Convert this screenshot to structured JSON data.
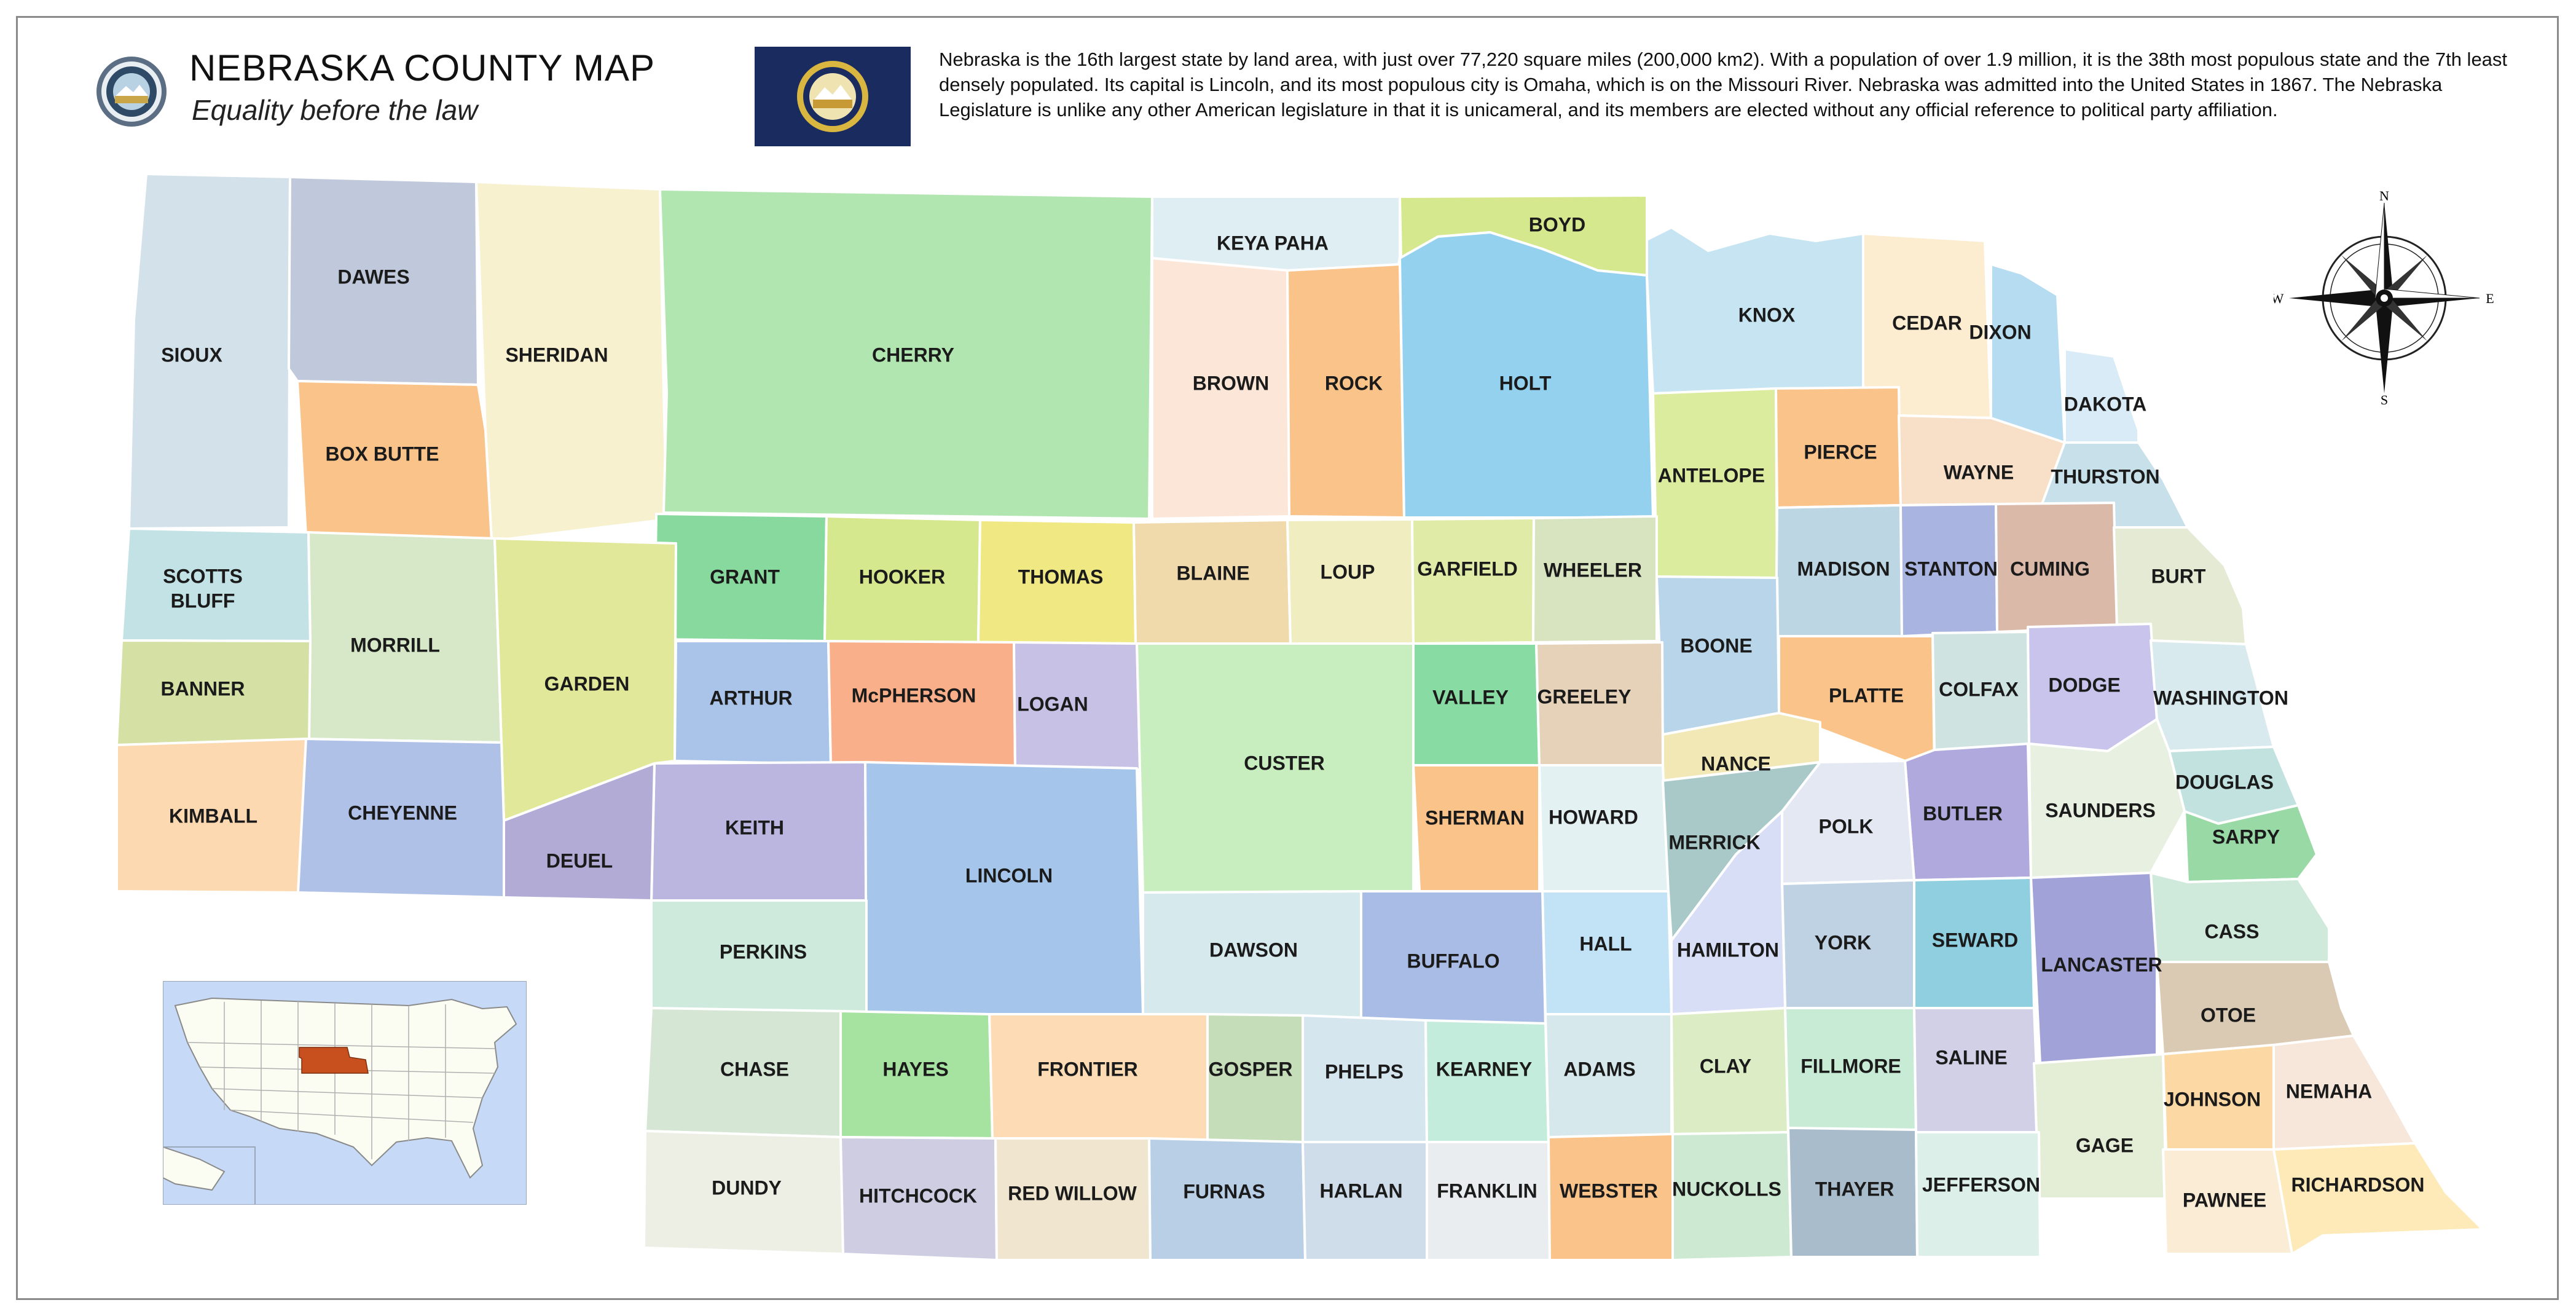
{
  "header": {
    "title": "NEBRASKA COUNTY MAP",
    "subtitle": "Equality before the law",
    "description": "Nebraska is the 16th largest state by land area, with just over 77,220 square miles (200,000 km2). With a population of over 1.9 million, it is the 38th most populous state and the 7th least densely populated. Its capital is Lincoln, and its most populous city is Omaha, which is on the Missouri River. Nebraska was admitted into the United States in 1867. The Nebraska Legislature is unlike any other American legislature in that it is unicameral, and its members are elected without any official reference to political party affiliation."
  },
  "icons": {
    "seal": "state-seal-icon",
    "flag": "state-flag-icon",
    "compass": "compass-rose-icon",
    "inset": "usa-locator-map"
  },
  "compass": {
    "n": "N",
    "s": "S",
    "e": "E",
    "w": "W"
  },
  "colors": {
    "highlight_state": "#c8501e",
    "border": "#ffffff",
    "background": "#ffffff"
  },
  "counties": [
    {
      "name": "SIOUX",
      "color": "#d3e1ea"
    },
    {
      "name": "DAWES",
      "color": "#bfc9db"
    },
    {
      "name": "SHERIDAN",
      "color": "#f7f1cf"
    },
    {
      "name": "CHERRY",
      "color": "#b2e6b1"
    },
    {
      "name": "KEYA PAHA",
      "color": "#dfeef3"
    },
    {
      "name": "BOYD",
      "color": "#d5e88e"
    },
    {
      "name": "BOX BUTTE",
      "color": "#f9c389"
    },
    {
      "name": "BROWN",
      "color": "#fbe6d8"
    },
    {
      "name": "ROCK",
      "color": "#f9c389"
    },
    {
      "name": "HOLT",
      "color": "#93d1ef"
    },
    {
      "name": "KNOX",
      "color": "#c6e4f1"
    },
    {
      "name": "CEDAR",
      "color": "#fcedd1"
    },
    {
      "name": "DIXON",
      "color": "#b6dcf1"
    },
    {
      "name": "DAKOTA",
      "color": "#d9ebf6"
    },
    {
      "name": "SCOTTS",
      "color": "#c2e2e6"
    },
    {
      "name": "BLUFF",
      "color": "#c2e2e6"
    },
    {
      "name": "ANTELOPE",
      "color": "#dbec9f"
    },
    {
      "name": "PIERCE",
      "color": "#f9c389"
    },
    {
      "name": "WAYNE",
      "color": "#f8e0c8"
    },
    {
      "name": "THURSTON",
      "color": "#c7e0ea"
    },
    {
      "name": "GRANT",
      "color": "#87d99e"
    },
    {
      "name": "HOOKER",
      "color": "#d5e88e"
    },
    {
      "name": "THOMAS",
      "color": "#f0e882"
    },
    {
      "name": "BLAINE",
      "color": "#f0d9ab"
    },
    {
      "name": "LOUP",
      "color": "#f0eec0"
    },
    {
      "name": "GARFIELD",
      "color": "#dfeba6"
    },
    {
      "name": "WHEELER",
      "color": "#d8e4c0"
    },
    {
      "name": "MORRILL",
      "color": "#d6e8c8"
    },
    {
      "name": "GARDEN",
      "color": "#e1e89a"
    },
    {
      "name": "MADISON",
      "color": "#bcd6e4"
    },
    {
      "name": "STANTON",
      "color": "#aab4e0"
    },
    {
      "name": "CUMING",
      "color": "#dbb9a9"
    },
    {
      "name": "BURT",
      "color": "#e4ead4"
    },
    {
      "name": "BANNER",
      "color": "#d5e0a4"
    },
    {
      "name": "ARTHUR",
      "color": "#a9c4e8"
    },
    {
      "name": "McPHERSON",
      "color": "#f9b08a"
    },
    {
      "name": "LOGAN",
      "color": "#c7c1e6"
    },
    {
      "name": "BOONE",
      "color": "#b9d5ea"
    },
    {
      "name": "VALLEY",
      "color": "#89dba4"
    },
    {
      "name": "GREELEY",
      "color": "#e5d2b8"
    },
    {
      "name": "PLATTE",
      "color": "#f9c389"
    },
    {
      "name": "COLFAX",
      "color": "#cfe4e1"
    },
    {
      "name": "DODGE",
      "color": "#c8c4ec"
    },
    {
      "name": "WASHINGTON",
      "color": "#d9eaef"
    },
    {
      "name": "CUSTER",
      "color": "#c8eebf"
    },
    {
      "name": "NANCE",
      "color": "#f2e8b6"
    },
    {
      "name": "KIMBALL",
      "color": "#fdd9b1"
    },
    {
      "name": "CHEYENNE",
      "color": "#b0c1e8"
    },
    {
      "name": "DOUGLAS",
      "color": "#c2e2e0"
    },
    {
      "name": "KEITH",
      "color": "#bab6e0"
    },
    {
      "name": "SHERMAN",
      "color": "#f9c389"
    },
    {
      "name": "HOWARD",
      "color": "#e4f1f3"
    },
    {
      "name": "SAUNDERS",
      "color": "#e8f1e1"
    },
    {
      "name": "BUTLER",
      "color": "#b0a9de"
    },
    {
      "name": "POLK",
      "color": "#e4e8f3"
    },
    {
      "name": "MERRICK",
      "color": "#a9c9c9"
    },
    {
      "name": "SARPY",
      "color": "#98d9a6"
    },
    {
      "name": "DEUEL",
      "color": "#b2abd6"
    },
    {
      "name": "LINCOLN",
      "color": "#a5c6ea"
    },
    {
      "name": "CASS",
      "color": "#cfeadb"
    },
    {
      "name": "LANCASTER",
      "color": "#a1a3d8"
    },
    {
      "name": "PERKINS",
      "color": "#cdeadd"
    },
    {
      "name": "DAWSON",
      "color": "#d6e9ed"
    },
    {
      "name": "HALL",
      "color": "#c2e2f6"
    },
    {
      "name": "YORK",
      "color": "#bfd2e3"
    },
    {
      "name": "SEWARD",
      "color": "#8fcfe0"
    },
    {
      "name": "HAMILTON",
      "color": "#d8def6"
    },
    {
      "name": "BUFFALO",
      "color": "#a9bce6"
    },
    {
      "name": "OTOE",
      "color": "#dacab3"
    },
    {
      "name": "CHASE",
      "color": "#d6e6d4"
    },
    {
      "name": "HAYES",
      "color": "#a6e3a1"
    },
    {
      "name": "FRONTIER",
      "color": "#fddcb5"
    },
    {
      "name": "GOSPER",
      "color": "#c5ddb9"
    },
    {
      "name": "PHELPS",
      "color": "#d6e6ef"
    },
    {
      "name": "KEARNEY",
      "color": "#c4ecdd"
    },
    {
      "name": "ADAMS",
      "color": "#d7e8ec"
    },
    {
      "name": "CLAY",
      "color": "#dcedc5"
    },
    {
      "name": "FILLMORE",
      "color": "#c8ebd5"
    },
    {
      "name": "SALINE",
      "color": "#d2d0e6"
    },
    {
      "name": "GAGE",
      "color": "#e4edd6"
    },
    {
      "name": "JOHNSON",
      "color": "#fcd9a4"
    },
    {
      "name": "NEMAHA",
      "color": "#f7e6da"
    },
    {
      "name": "DUNDY",
      "color": "#edeee4"
    },
    {
      "name": "HITCHCOCK",
      "color": "#cecde2"
    },
    {
      "name": "RED WILLOW",
      "color": "#f0e6cf"
    },
    {
      "name": "FURNAS",
      "color": "#b8cfe6"
    },
    {
      "name": "HARLAN",
      "color": "#cfdcea"
    },
    {
      "name": "FRANKLIN",
      "color": "#e9edef"
    },
    {
      "name": "WEBSTER",
      "color": "#f9c389"
    },
    {
      "name": "NUCKOLLS",
      "color": "#cde9d2"
    },
    {
      "name": "THAYER",
      "color": "#a8bccb"
    },
    {
      "name": "JEFFERSON",
      "color": "#dcefe8"
    },
    {
      "name": "PAWNEE",
      "color": "#fbecd5"
    },
    {
      "name": "RICHARDSON",
      "color": "#fdeab8"
    }
  ]
}
